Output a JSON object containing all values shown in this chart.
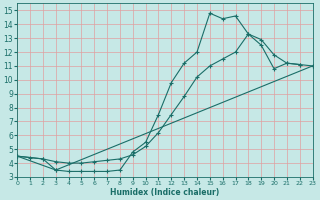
{
  "xlabel": "Humidex (Indice chaleur)",
  "xlim": [
    0,
    23
  ],
  "ylim": [
    3,
    15.5
  ],
  "xticks": [
    0,
    1,
    2,
    3,
    4,
    5,
    6,
    7,
    8,
    9,
    10,
    11,
    12,
    13,
    14,
    15,
    16,
    17,
    18,
    19,
    20,
    21,
    22,
    23
  ],
  "yticks": [
    3,
    4,
    5,
    6,
    7,
    8,
    9,
    10,
    11,
    12,
    13,
    14,
    15
  ],
  "bg_color": "#c6e8e6",
  "grid_color": "#e0a0a0",
  "line_color": "#1a6e68",
  "curve1_x": [
    0,
    1,
    2,
    3,
    4,
    5,
    6,
    7,
    8,
    9,
    10,
    11,
    12,
    13,
    14,
    15,
    16,
    17,
    18,
    19,
    20,
    21,
    22
  ],
  "curve1_y": [
    4.5,
    4.4,
    4.3,
    3.5,
    3.4,
    3.4,
    3.4,
    3.4,
    3.5,
    4.8,
    5.5,
    7.5,
    9.8,
    11.2,
    12.0,
    14.8,
    14.4,
    14.6,
    13.3,
    12.9,
    11.8,
    11.2,
    11.1
  ],
  "curve2_x": [
    0,
    2,
    3,
    4,
    5,
    6,
    7,
    8,
    9,
    10,
    11,
    12,
    13,
    14,
    15,
    16,
    17,
    18,
    19,
    20,
    21,
    22,
    23
  ],
  "curve2_y": [
    4.5,
    4.3,
    4.1,
    4.0,
    4.0,
    4.1,
    4.2,
    4.3,
    4.6,
    5.2,
    6.2,
    7.5,
    8.8,
    10.2,
    11.0,
    11.5,
    12.0,
    13.3,
    12.5,
    10.8,
    11.2,
    11.1,
    11.0
  ],
  "line3_x": [
    0,
    3,
    23
  ],
  "line3_y": [
    4.5,
    3.5,
    11.0
  ]
}
